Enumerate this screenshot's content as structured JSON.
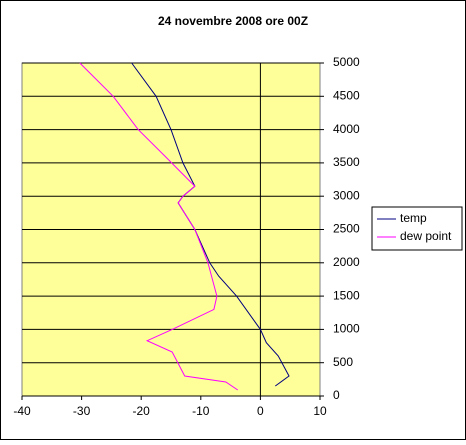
{
  "chart_data": {
    "type": "line",
    "title": "24 novembre 2008 ore 00Z",
    "series": [
      {
        "name": "temp",
        "color": "#000080",
        "x": [
          2.5,
          4.8,
          3,
          1,
          0,
          -4,
          -7,
          -8.5,
          -11,
          -13.8,
          -13,
          -11,
          -13,
          -15,
          -17.5,
          -21.6
        ],
        "values": [
          150,
          300,
          600,
          800,
          1000,
          1500,
          1800,
          2000,
          2500,
          2900,
          3000,
          3150,
          3500,
          4000,
          4500,
          5000
        ]
      },
      {
        "name": "dew point",
        "color": "#ff00ff",
        "x": [
          -3.8,
          -5.8,
          -12.7,
          -14.8,
          -19,
          -14.8,
          -7.8,
          -7.3,
          -8.8,
          -11,
          -13.8,
          -13,
          -11,
          -16,
          -20.5,
          -24.7,
          -30.3
        ],
        "values": [
          90,
          210,
          300,
          660,
          830,
          1000,
          1300,
          1500,
          2000,
          2500,
          2900,
          3000,
          3150,
          3600,
          4000,
          4500,
          5000
        ]
      }
    ],
    "xlim": [
      -40,
      10
    ],
    "xticks": [
      -40,
      -30,
      -20,
      -10,
      0,
      10
    ],
    "ylim": [
      0,
      5000
    ],
    "yticks": [
      0,
      500,
      1000,
      1500,
      2000,
      2500,
      3000,
      3500,
      4000,
      4500,
      5000
    ],
    "grid": true,
    "legend": "right",
    "background": "#ffff99"
  }
}
